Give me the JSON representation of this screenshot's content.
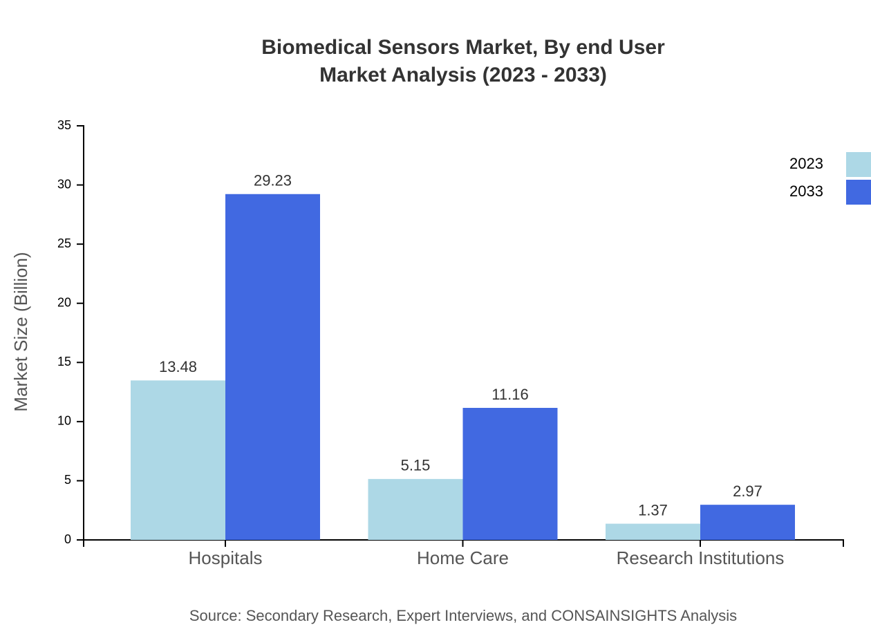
{
  "chart_data": {
    "type": "bar",
    "title": "Biomedical Sensors Market, By end User",
    "subtitle": "Market Analysis (2023 - 2033)",
    "ylabel": "Market Size (Billion)",
    "source": "Source: Secondary Research, Expert Interviews, and CONSAINSIGHTS Analysis",
    "categories": [
      "Hospitals",
      "Home Care",
      "Research Institutions"
    ],
    "series": [
      {
        "name": "2023",
        "color": "#add8e6",
        "values": [
          13.48,
          5.15,
          1.37
        ]
      },
      {
        "name": "2033",
        "color": "#4169e1",
        "values": [
          29.23,
          11.16,
          2.97
        ]
      }
    ],
    "ylim": [
      0,
      35
    ],
    "yticks": [
      0,
      5,
      10,
      15,
      20,
      25,
      30,
      35
    ],
    "legend": "upper-right"
  }
}
